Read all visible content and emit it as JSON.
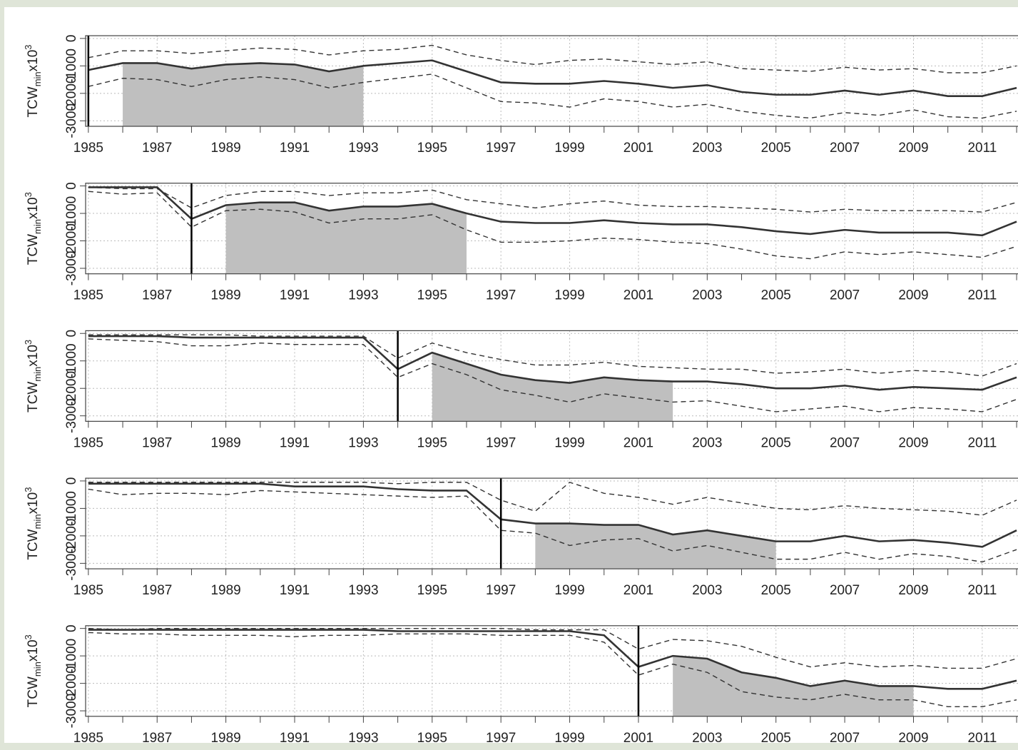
{
  "chart_data": [
    {
      "type": "line",
      "y_label": {
        "main": "TCW",
        "sub": "min",
        "mid": "x10",
        "sup": "3"
      },
      "x": [
        1985,
        1986,
        1987,
        1988,
        1989,
        1990,
        1991,
        1992,
        1993,
        1994,
        1995,
        1996,
        1997,
        1998,
        1999,
        2000,
        2001,
        2002,
        2003,
        2004,
        2005,
        2006,
        2007,
        2008,
        2009,
        2010,
        2011,
        2012
      ],
      "series": [
        {
          "style": "solid",
          "color": "#333333",
          "values": [
            -1150,
            -900,
            -900,
            -1100,
            -950,
            -900,
            -950,
            -1200,
            -1000,
            -900,
            -800,
            -1200,
            -1600,
            -1650,
            -1650,
            -1550,
            -1650,
            -1800,
            -1700,
            -1950,
            -2050,
            -2050,
            -1900,
            -2050,
            -1900,
            -2100,
            -2100,
            -1800
          ]
        },
        {
          "style": "dashed",
          "color": "#333333",
          "values": [
            -700,
            -450,
            -450,
            -550,
            -450,
            -350,
            -400,
            -600,
            -450,
            -400,
            -250,
            -600,
            -800,
            -950,
            -800,
            -750,
            -850,
            -950,
            -850,
            -1100,
            -1150,
            -1200,
            -1050,
            -1150,
            -1100,
            -1250,
            -1250,
            -1000
          ]
        },
        {
          "style": "dashed",
          "color": "#333333",
          "values": [
            -1750,
            -1450,
            -1500,
            -1750,
            -1500,
            -1400,
            -1500,
            -1800,
            -1600,
            -1450,
            -1300,
            -1800,
            -2300,
            -2350,
            -2500,
            -2200,
            -2300,
            -2500,
            -2400,
            -2650,
            -2800,
            -2900,
            -2700,
            -2800,
            -2600,
            -2850,
            -2900,
            -2650
          ]
        }
      ],
      "disturbance_year": 1985,
      "recovery_span": [
        1986,
        1993
      ],
      "shade_color": "#bfbfbf",
      "xlim": [
        1984.92,
        2012.04
      ],
      "xticks": [
        1985,
        1987,
        1989,
        1991,
        1993,
        1995,
        1997,
        1999,
        2001,
        2003,
        2005,
        2007,
        2009,
        2011
      ],
      "minor_xticks": [
        1986,
        1988,
        1990,
        1992,
        1994,
        1996,
        1998,
        2000,
        2002,
        2004,
        2006,
        2008,
        2010,
        2012
      ],
      "ylim": [
        -3200,
        100
      ],
      "yticks": [
        -3000,
        -2000,
        -1000,
        0
      ],
      "grid": true
    },
    {
      "type": "line",
      "y_label": {
        "main": "TCW",
        "sub": "min",
        "mid": "x10",
        "sup": "3"
      },
      "x": [
        1985,
        1986,
        1987,
        1988,
        1989,
        1990,
        1991,
        1992,
        1993,
        1994,
        1995,
        1996,
        1997,
        1998,
        1999,
        2000,
        2001,
        2002,
        2003,
        2004,
        2005,
        2006,
        2007,
        2008,
        2009,
        2010,
        2011,
        2012
      ],
      "series": [
        {
          "style": "solid",
          "color": "#333333",
          "values": [
            -50,
            -50,
            -50,
            -1200,
            -700,
            -600,
            -600,
            -900,
            -750,
            -750,
            -650,
            -1000,
            -1300,
            -1350,
            -1350,
            -1250,
            -1350,
            -1400,
            -1400,
            -1500,
            -1650,
            -1750,
            -1600,
            -1700,
            -1700,
            -1700,
            -1800,
            -1300
          ]
        },
        {
          "style": "dashed",
          "color": "#333333",
          "values": [
            -50,
            -100,
            -100,
            -800,
            -350,
            -200,
            -200,
            -350,
            -250,
            -250,
            -150,
            -500,
            -650,
            -800,
            -650,
            -550,
            -700,
            -750,
            -750,
            -800,
            -850,
            -950,
            -850,
            -900,
            -900,
            -900,
            -950,
            -600
          ]
        },
        {
          "style": "dashed",
          "color": "#333333",
          "values": [
            -200,
            -300,
            -250,
            -1500,
            -900,
            -850,
            -950,
            -1350,
            -1200,
            -1200,
            -1050,
            -1600,
            -2050,
            -2050,
            -2000,
            -1900,
            -1950,
            -2050,
            -2100,
            -2300,
            -2550,
            -2650,
            -2400,
            -2500,
            -2400,
            -2500,
            -2600,
            -2200
          ]
        }
      ],
      "disturbance_year": 1988,
      "recovery_span": [
        1989,
        1996
      ],
      "shade_color": "#bfbfbf",
      "xlim": [
        1984.92,
        2012.04
      ],
      "xticks": [
        1985,
        1987,
        1989,
        1991,
        1993,
        1995,
        1997,
        1999,
        2001,
        2003,
        2005,
        2007,
        2009,
        2011
      ],
      "minor_xticks": [
        1986,
        1988,
        1990,
        1992,
        1994,
        1996,
        1998,
        2000,
        2002,
        2004,
        2006,
        2008,
        2010,
        2012
      ],
      "ylim": [
        -3200,
        100
      ],
      "yticks": [
        -3000,
        -2000,
        -1000,
        0
      ],
      "grid": true
    },
    {
      "type": "line",
      "y_label": {
        "main": "TCW",
        "sub": "min",
        "mid": "x10",
        "sup": "3"
      },
      "x": [
        1985,
        1986,
        1987,
        1988,
        1989,
        1990,
        1991,
        1992,
        1993,
        1994,
        1995,
        1996,
        1997,
        1998,
        1999,
        2000,
        2001,
        2002,
        2003,
        2004,
        2005,
        2006,
        2007,
        2008,
        2009,
        2010,
        2011,
        2012
      ],
      "series": [
        {
          "style": "solid",
          "color": "#333333",
          "values": [
            -100,
            -100,
            -100,
            -150,
            -150,
            -150,
            -150,
            -150,
            -150,
            -1300,
            -700,
            -1100,
            -1500,
            -1700,
            -1800,
            -1600,
            -1700,
            -1750,
            -1750,
            -1850,
            -2000,
            -2000,
            -1900,
            -2050,
            -1950,
            -2000,
            -2050,
            -1600
          ]
        },
        {
          "style": "dashed",
          "color": "#333333",
          "values": [
            -50,
            -50,
            -50,
            -50,
            -50,
            -100,
            -100,
            -100,
            -100,
            -900,
            -350,
            -700,
            -950,
            -1150,
            -1150,
            -1050,
            -1200,
            -1250,
            -1300,
            -1300,
            -1450,
            -1400,
            -1300,
            -1450,
            -1350,
            -1400,
            -1550,
            -1100
          ]
        },
        {
          "style": "dashed",
          "color": "#333333",
          "values": [
            -200,
            -250,
            -300,
            -450,
            -450,
            -350,
            -400,
            -400,
            -400,
            -1600,
            -1100,
            -1500,
            -2050,
            -2250,
            -2500,
            -2200,
            -2350,
            -2500,
            -2450,
            -2650,
            -2850,
            -2750,
            -2650,
            -2850,
            -2700,
            -2750,
            -2850,
            -2400
          ]
        }
      ],
      "disturbance_year": 1994,
      "recovery_span": [
        1995,
        2002
      ],
      "shade_color": "#bfbfbf",
      "xlim": [
        1984.92,
        2012.04
      ],
      "xticks": [
        1985,
        1987,
        1989,
        1991,
        1993,
        1995,
        1997,
        1999,
        2001,
        2003,
        2005,
        2007,
        2009,
        2011
      ],
      "minor_xticks": [
        1986,
        1988,
        1990,
        1992,
        1994,
        1996,
        1998,
        2000,
        2002,
        2004,
        2006,
        2008,
        2010,
        2012
      ],
      "ylim": [
        -3200,
        100
      ],
      "yticks": [
        -3000,
        -2000,
        -1000,
        0
      ],
      "grid": true
    },
    {
      "type": "line",
      "y_label": {
        "main": "TCW",
        "sub": "min",
        "mid": "x10",
        "sup": "3"
      },
      "x": [
        1985,
        1986,
        1987,
        1988,
        1989,
        1990,
        1991,
        1992,
        1993,
        1994,
        1995,
        1996,
        1997,
        1998,
        1999,
        2000,
        2001,
        2002,
        2003,
        2004,
        2005,
        2006,
        2007,
        2008,
        2009,
        2010,
        2011,
        2012
      ],
      "series": [
        {
          "style": "solid",
          "color": "#333333",
          "values": [
            -100,
            -100,
            -100,
            -100,
            -100,
            -100,
            -200,
            -200,
            -200,
            -300,
            -350,
            -350,
            -1400,
            -1550,
            -1550,
            -1600,
            -1600,
            -1950,
            -1800,
            -2000,
            -2200,
            -2200,
            -2000,
            -2200,
            -2150,
            -2250,
            -2400,
            -1800
          ]
        },
        {
          "style": "dashed",
          "color": "#333333",
          "values": [
            -50,
            -50,
            -50,
            -50,
            -50,
            -50,
            -50,
            -50,
            -50,
            -100,
            -50,
            -50,
            -700,
            -1100,
            -50,
            -450,
            -600,
            -850,
            -600,
            -800,
            -1000,
            -1050,
            -900,
            -1000,
            -1050,
            -1100,
            -1250,
            -700
          ]
        },
        {
          "style": "dashed",
          "color": "#333333",
          "values": [
            -300,
            -500,
            -450,
            -450,
            -500,
            -350,
            -400,
            -450,
            -500,
            -550,
            -600,
            -550,
            -1800,
            -1900,
            -2350,
            -2150,
            -2100,
            -2550,
            -2350,
            -2600,
            -2850,
            -2850,
            -2600,
            -2850,
            -2650,
            -2750,
            -2950,
            -2500
          ]
        }
      ],
      "disturbance_year": 1997,
      "recovery_span": [
        1998,
        2005
      ],
      "shade_color": "#bfbfbf",
      "xlim": [
        1984.92,
        2012.04
      ],
      "xticks": [
        1985,
        1987,
        1989,
        1991,
        1993,
        1995,
        1997,
        1999,
        2001,
        2003,
        2005,
        2007,
        2009,
        2011
      ],
      "minor_xticks": [
        1986,
        1988,
        1990,
        1992,
        1994,
        1996,
        1998,
        2000,
        2002,
        2004,
        2006,
        2008,
        2010,
        2012
      ],
      "ylim": [
        -3200,
        100
      ],
      "yticks": [
        -3000,
        -2000,
        -1000,
        0
      ],
      "grid": true
    },
    {
      "type": "line",
      "y_label": {
        "main": "TCW",
        "sub": "min",
        "mid": "x10",
        "sup": "3"
      },
      "x": [
        1985,
        1986,
        1987,
        1988,
        1989,
        1990,
        1991,
        1992,
        1993,
        1994,
        1995,
        1996,
        1997,
        1998,
        1999,
        2000,
        2001,
        2002,
        2003,
        2004,
        2005,
        2006,
        2007,
        2008,
        2009,
        2010,
        2011,
        2012
      ],
      "series": [
        {
          "style": "solid",
          "color": "#333333",
          "values": [
            -50,
            -50,
            -50,
            -50,
            -50,
            -50,
            -50,
            -50,
            -50,
            -100,
            -100,
            -100,
            -100,
            -100,
            -100,
            -250,
            -1400,
            -1000,
            -1100,
            -1600,
            -1800,
            -2100,
            -1900,
            -2100,
            -2100,
            -2200,
            -2200,
            -1900
          ]
        },
        {
          "style": "dashed",
          "color": "#333333",
          "values": [
            0,
            -50,
            0,
            0,
            0,
            0,
            0,
            0,
            0,
            0,
            0,
            0,
            0,
            -50,
            -50,
            -50,
            -750,
            -400,
            -450,
            -650,
            -1050,
            -1400,
            -1250,
            -1400,
            -1350,
            -1450,
            -1450,
            -1100
          ]
        },
        {
          "style": "dashed",
          "color": "#333333",
          "values": [
            -150,
            -200,
            -200,
            -250,
            -250,
            -250,
            -300,
            -250,
            -250,
            -200,
            -200,
            -200,
            -250,
            -250,
            -250,
            -500,
            -1700,
            -1300,
            -1600,
            -2300,
            -2500,
            -2600,
            -2400,
            -2600,
            -2600,
            -2850,
            -2850,
            -2600
          ]
        }
      ],
      "disturbance_year": 2001,
      "recovery_span": [
        2002,
        2009
      ],
      "shade_color": "#bfbfbf",
      "xlim": [
        1984.92,
        2012.04
      ],
      "xticks": [
        1985,
        1987,
        1989,
        1991,
        1993,
        1995,
        1997,
        1999,
        2001,
        2003,
        2005,
        2007,
        2009,
        2011
      ],
      "minor_xticks": [
        1986,
        1988,
        1990,
        1992,
        1994,
        1996,
        1998,
        2000,
        2002,
        2004,
        2006,
        2008,
        2010,
        2012
      ],
      "ylim": [
        -3200,
        100
      ],
      "yticks": [
        -3000,
        -2000,
        -1000,
        0
      ],
      "grid": true
    }
  ]
}
